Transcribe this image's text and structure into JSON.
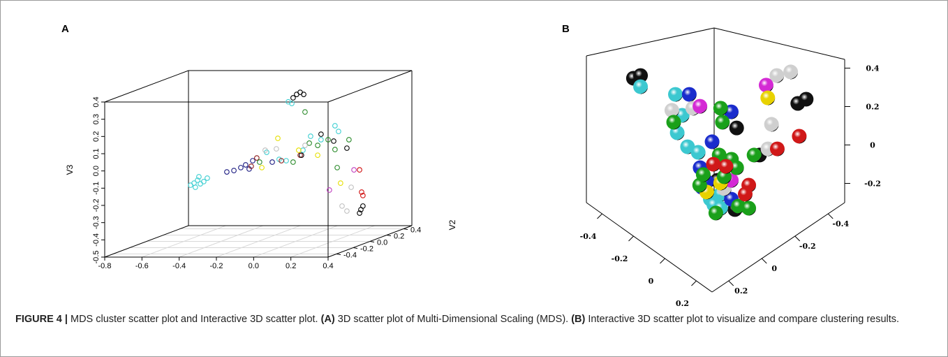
{
  "chart_data": [
    {
      "type": "scatter3d",
      "marker": "open-circle",
      "panel_label": "A",
      "zlabel": "V3",
      "ylabel": "V2",
      "xlim": [
        -0.8,
        0.4
      ],
      "xticks": [
        -0.8,
        -0.6,
        -0.4,
        -0.2,
        {
          "value": 0,
          "label": "0.0"
        },
        0.2,
        0.4
      ],
      "ylim": [
        -0.5,
        0.5
      ],
      "yticks": [
        -0.4,
        -0.2,
        {
          "value": 0,
          "label": "0.0"
        },
        0.2,
        0.4
      ],
      "zlim": [
        -0.5,
        0.4
      ],
      "zticks": [
        -0.5,
        -0.4,
        -0.3,
        -0.2,
        -0.1,
        {
          "value": 0,
          "label": "0.0"
        },
        0.1,
        0.2,
        0.3,
        0.4
      ],
      "grid": true,
      "series": [
        {
          "color": "#3fcfd2",
          "x": [
            -0.564,
            -0.545,
            -0.526,
            -0.511,
            -0.493,
            -0.519,
            -0.474,
            -0.538,
            -0.155,
            -0.088,
            -0.05,
            0.04,
            0.081,
            0.137,
            0.212,
            0.231,
            -0.039,
            -0.02
          ],
          "y": [
            0,
            0,
            0,
            0,
            0,
            0,
            0,
            0,
            0,
            0,
            0,
            0,
            0,
            0,
            0,
            0,
            0,
            0
          ],
          "z": [
            -0.174,
            -0.162,
            -0.145,
            -0.166,
            -0.153,
            -0.125,
            -0.133,
            -0.186,
            0.017,
            -0.024,
            -0.032,
            0.029,
            0.11,
            0.09,
            0.171,
            0.138,
            0.31,
            0.3
          ]
        },
        {
          "color": "#1c1c82",
          "x": [
            -0.369,
            -0.331,
            -0.294,
            -0.268,
            -0.249,
            -0.125,
            -0.23
          ],
          "y": [
            0,
            0,
            0,
            0,
            0,
            0,
            0
          ],
          "z": [
            -0.097,
            -0.089,
            -0.072,
            -0.056,
            -0.08,
            -0.04,
            -0.032
          ]
        },
        {
          "color": "#8b1a1a",
          "x": [
            -0.238,
            -0.208,
            -0.076,
            0.025
          ],
          "y": [
            0,
            0,
            0,
            0
          ],
          "z": [
            -0.064,
            -0.016,
            -0.032,
            0
          ]
        },
        {
          "color": "#2a8a2a",
          "x": [
            -0.193,
            -0.013,
            0.074,
            0.119,
            0.175,
            0.212,
            0.224,
            0.287,
            0.051
          ],
          "y": [
            0,
            0,
            0,
            0,
            0,
            0,
            0,
            0,
            0
          ],
          "z": [
            -0.04,
            -0.04,
            0.07,
            0.057,
            0.09,
            0.033,
            -0.072,
            0.09,
            0.251
          ]
        },
        {
          "color": "#000000",
          "x": [
            -0.013,
            0.006,
            0.025,
            0.044,
            0.137,
            0.205,
            0.276,
            0.032,
            0.362,
            0.351,
            0.344
          ],
          "y": [
            0,
            0,
            0,
            0,
            0,
            0,
            0,
            0,
            0,
            0,
            0
          ],
          "z": [
            0.333,
            0.353,
            0.365,
            0.353,
            0.122,
            0.082,
            0.041,
            0,
            -0.295,
            -0.316,
            -0.336
          ]
        },
        {
          "color": "#e6e000",
          "x": [
            -0.181,
            -0.095,
            0.017,
            0.119,
            0.242
          ],
          "y": [
            0,
            0,
            0,
            0,
            0
          ],
          "z": [
            -0.072,
            0.098,
            0.029,
            0,
            -0.162
          ]
        },
        {
          "color": "#c0c0c0",
          "x": [
            -0.163,
            -0.103,
            0.051,
            0.299,
            0.25,
            0.276
          ],
          "y": [
            0,
            0,
            0,
            0,
            0,
            0
          ],
          "z": [
            0.029,
            0.037,
            0.057,
            -0.186,
            -0.295,
            -0.324
          ]
        },
        {
          "color": "#c040c0",
          "x": [
            0.182,
            0.314
          ],
          "y": [
            0,
            0
          ],
          "z": [
            -0.202,
            -0.085
          ]
        },
        {
          "color": "#d01010",
          "x": [
            0.355,
            0.362,
            0.344
          ],
          "y": [
            0,
            0,
            0
          ],
          "z": [
            -0.214,
            -0.234,
            -0.085
          ]
        }
      ]
    },
    {
      "type": "scatter3d",
      "marker": "sphere",
      "panel_label": "B",
      "xlim": [
        -0.5,
        0.3
      ],
      "xticks": [
        -0.4,
        -0.2,
        0,
        0.2
      ],
      "ylim": [
        -0.5,
        0.3
      ],
      "yticks": [
        -0.4,
        -0.2,
        0,
        0.2
      ],
      "zlim": [
        -0.3,
        0.45
      ],
      "zticks": [
        0.4,
        0.2,
        0,
        -0.2
      ],
      "series": [
        {
          "color": "#111111",
          "x": [
            -0.457,
            -0.435,
            0.052,
            0.078,
            0.068,
            0.139,
            0.214,
            0.268
          ],
          "y": [
            0.057,
            0.035,
            -0.452,
            -0.478,
            -0.068,
            -0.139,
            0.186,
            0.132
          ],
          "z": [
            0.231,
            0.245,
            0.1,
            0.122,
            0.205,
            0.064,
            0.165,
            0.013
          ]
        },
        {
          "color": "#3cc8d0",
          "x": [
            -0.435,
            -0.327,
            -0.306,
            -0.116,
            -0.084,
            -0.051,
            0.224,
            0.192,
            0.203,
            0.224
          ],
          "y": [
            0.035,
            -0.073,
            -0.094,
            0.116,
            0.084,
            0.051,
            0.176,
            0.208,
            0.197,
            0.176
          ],
          "z": [
            0.187,
            0.147,
            0.038,
            0.18,
            0.107,
            0.078,
            0.093,
            0.067,
            0.038,
            0.02
          ]
        },
        {
          "color": "#1a2ccc",
          "x": [
            -0.284,
            -0.154,
            -0.008,
            -0.045,
            0.181,
            0.166,
            0.257
          ],
          "y": [
            -0.116,
            -0.246,
            0.008,
            0.045,
            0.219,
            0.234,
            0.143
          ],
          "z": [
            0.147,
            0.056,
            0.133,
            -0.002,
            0.158,
            0.129,
            0.067
          ]
        },
        {
          "color": "#cfcfcf",
          "x": [
            -0.013,
            0.03,
            -0.338,
            -0.273,
            0.176,
            0.165,
            0.235
          ],
          "y": [
            -0.387,
            -0.43,
            -0.062,
            -0.127,
            -0.176,
            -0.165,
            0.165
          ],
          "z": [
            0.245,
            0.264,
            0.064,
            0.075,
            0.224,
            0.096,
            0.122
          ]
        },
        {
          "color": "#d42ad4",
          "x": [
            -0.046,
            -0.251,
            0.257
          ],
          "y": [
            -0.354,
            -0.149,
            0.143
          ],
          "z": [
            0.195,
            0.085,
            0.165
          ]
        },
        {
          "color": "#e8d200",
          "x": [
            -0.041,
            0.224,
            0.181
          ],
          "y": [
            -0.359,
            0.176,
            0.219
          ],
          "z": [
            0.129,
            0.151,
            0.104
          ]
        },
        {
          "color": "#1aa01a",
          "x": [
            -0.187,
            -0.127,
            0.024,
            0.122,
            0.014,
            0.052,
            0.068,
            0.235,
            0.159,
            0.209,
            0.279,
            0.311,
            0.17
          ],
          "y": [
            -0.213,
            0.127,
            -0.024,
            -0.122,
            -0.014,
            -0.052,
            -0.068,
            0.165,
            0.241,
            0.191,
            0.121,
            0.089,
            0.23
          ],
          "z": [
            0.075,
            0.235,
            0.235,
            0.064,
            0.064,
            0.042,
            -0.002,
            0.184,
            0.14,
            -0.005,
            0.031,
            0.02,
            0.195
          ]
        },
        {
          "color": "#d01818",
          "x": [
            0.262,
            0.194,
            -0.004,
            0.035,
            0.311,
            0.3
          ],
          "y": [
            -0.262,
            -0.194,
            0.004,
            -0.035,
            0.089,
            0.1
          ],
          "z": [
            0.162,
            0.096,
            0.016,
            0.005,
            0.14,
            0.093
          ]
        }
      ]
    }
  ],
  "caption": [
    "FIGURE 4 |",
    " MDS cluster scatter plot and Interactive 3D scatter plot. ",
    "(A)",
    " 3D scatter plot of Multi-Dimensional Scaling (MDS). ",
    "(B)",
    " Interactive 3D scatter plot to visualize and compare clustering results."
  ]
}
